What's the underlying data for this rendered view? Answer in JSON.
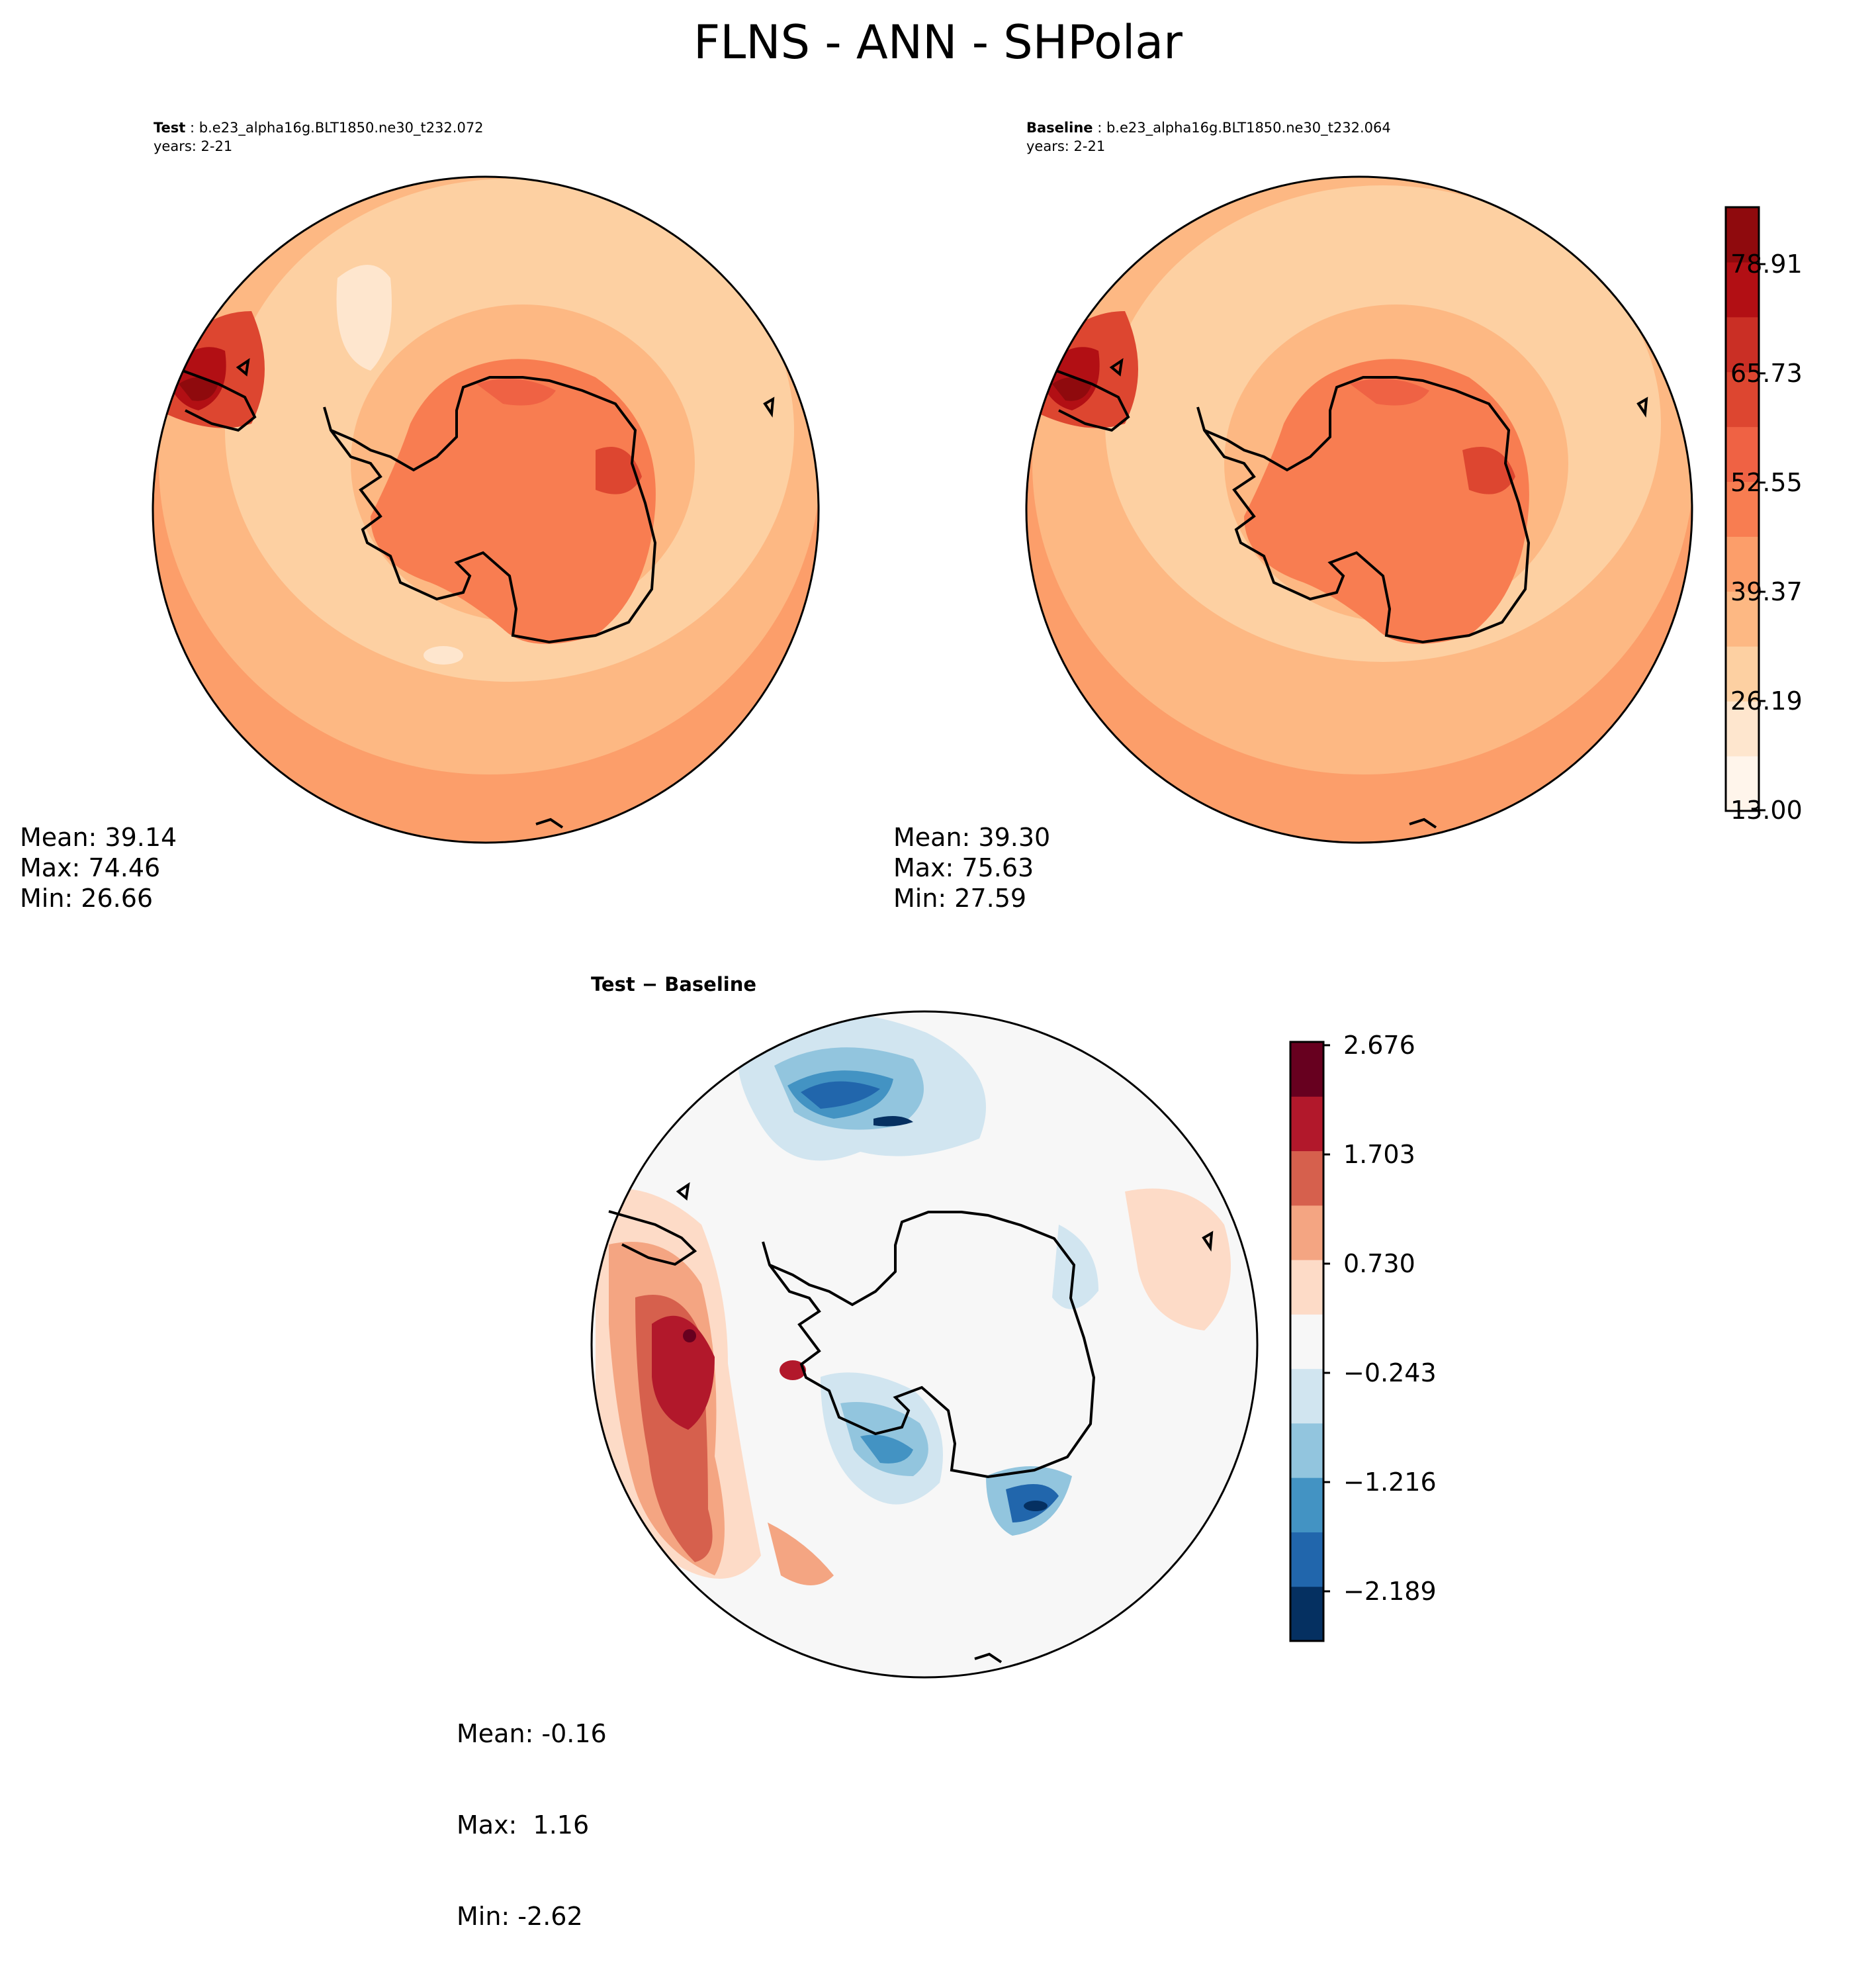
{
  "title": "FLNS - ANN - SHPolar",
  "colors": {
    "cbar_main": [
      "#fff5eb",
      "#fee6ce",
      "#fdd0a2",
      "#fdb883",
      "#fc9e6a",
      "#f87d51",
      "#ef6244",
      "#dd4630",
      "#ca2f25",
      "#b20f14",
      "#8f0a0d"
    ],
    "cbar_diff": [
      "#053061",
      "#2166ac",
      "#4393c3",
      "#92c5de",
      "#d1e5f0",
      "#f7f7f7",
      "#fddbc7",
      "#f4a582",
      "#d6604d",
      "#b2182b",
      "#67001f"
    ],
    "coast": "#000000"
  },
  "chart_data": [
    {
      "type": "heatmap",
      "panel": "test",
      "label": "Test",
      "case": "b.e23_alpha16g.BLT1850.ne30_t232.072",
      "years": "years: 2-21",
      "projection": "south-polar-stereographic",
      "stats": {
        "mean": "Mean: 39.14",
        "max": "Max: 74.46",
        "min": "Min: 26.66"
      }
    },
    {
      "type": "heatmap",
      "panel": "baseline",
      "label": "Baseline",
      "case": "b.e23_alpha16g.BLT1850.ne30_t232.064",
      "years": "years: 2-21",
      "projection": "south-polar-stereographic",
      "stats": {
        "mean": "Mean: 39.30",
        "max": "Max: 75.63",
        "min": "Min: 27.59"
      },
      "colorbar": {
        "ticks": [
          "78.91",
          "65.73",
          "52.55",
          "39.37",
          "26.19",
          "13.00"
        ],
        "range": [
          13.0,
          85.5
        ]
      }
    },
    {
      "type": "heatmap",
      "panel": "difference",
      "label": "Test − Baseline",
      "projection": "south-polar-stereographic",
      "stats": {
        "mean": "Mean: -0.16",
        "max": "Max:  1.16",
        "min": "Min: -2.62"
      },
      "colorbar": {
        "ticks": [
          "2.676",
          "1.703",
          "0.730",
          "−0.243",
          "−1.216",
          "−2.189"
        ],
        "range": [
          -2.676,
          2.676
        ]
      }
    }
  ]
}
